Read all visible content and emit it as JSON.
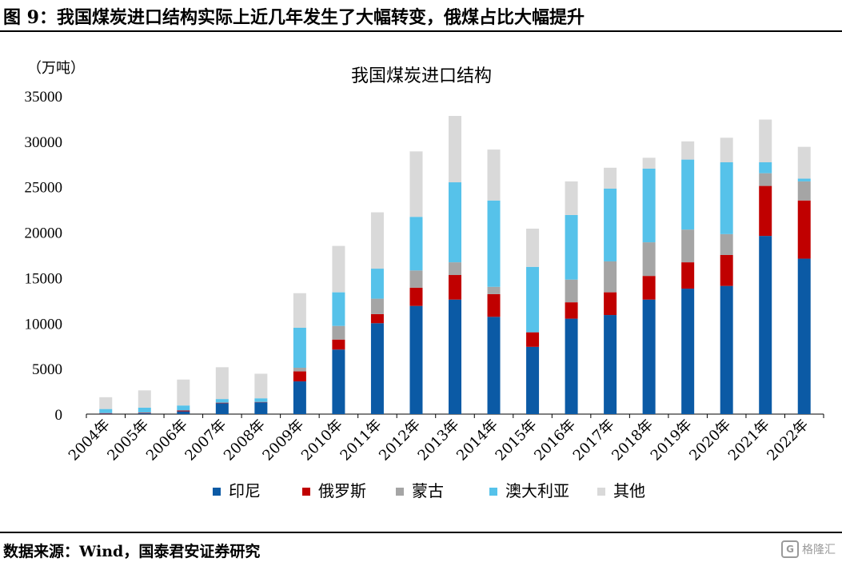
{
  "header": {
    "figure_title": "图 9：我国煤炭进口结构实际上近几年发生了大幅转变，俄煤占比大幅提升"
  },
  "footer": {
    "source": "数据来源：Wind，国泰君安证券研究",
    "watermark": "格隆汇",
    "watermark_logo": "G"
  },
  "chart_data": {
    "type": "bar",
    "stacked": true,
    "title": "我国煤炭进口结构",
    "ylabel": "（万吨）",
    "xlabel": "",
    "ylim": [
      0,
      35000
    ],
    "yticks": [
      "0",
      "5000",
      "10000",
      "15000",
      "20000",
      "25000",
      "30000",
      "35000"
    ],
    "grid": false,
    "legend_position": "bottom",
    "categories": [
      "2004年",
      "2005年",
      "2006年",
      "2007年",
      "2008年",
      "2009年",
      "2010年",
      "2011年",
      "2012年",
      "2013年",
      "2014年",
      "2015年",
      "2016年",
      "2017年",
      "2018年",
      "2019年",
      "2020年",
      "2021年",
      "2022年"
    ],
    "series": [
      {
        "name": "印尼",
        "color": "#0b5aa5",
        "values": [
          50,
          100,
          300,
          1200,
          1300,
          3600,
          7100,
          10000,
          11900,
          12600,
          10700,
          7400,
          10500,
          10900,
          12600,
          13800,
          14100,
          19600,
          17100
        ]
      },
      {
        "name": "俄罗斯",
        "color": "#c00000",
        "values": [
          60,
          60,
          100,
          60,
          40,
          1100,
          1100,
          1000,
          2000,
          2700,
          2500,
          1600,
          1800,
          2500,
          2600,
          2900,
          3400,
          5500,
          6400
        ]
      },
      {
        "name": "蒙古",
        "color": "#a5a5a5",
        "values": [
          0,
          0,
          0,
          0,
          0,
          400,
          1500,
          1700,
          1900,
          1400,
          800,
          0,
          2500,
          3400,
          3700,
          3600,
          2300,
          1400,
          2100
        ]
      },
      {
        "name": "澳大利亚",
        "color": "#56c2ea",
        "values": [
          450,
          550,
          550,
          400,
          400,
          4400,
          3700,
          3300,
          5900,
          8800,
          9500,
          7200,
          7100,
          8000,
          8100,
          7700,
          7900,
          1200,
          300
        ]
      },
      {
        "name": "其他",
        "color": "#d9d9d9",
        "values": [
          1300,
          1900,
          2850,
          3500,
          2700,
          3800,
          5100,
          6200,
          7200,
          7300,
          5600,
          4200,
          3700,
          2300,
          1200,
          2000,
          2700,
          4700,
          3500
        ]
      }
    ]
  }
}
